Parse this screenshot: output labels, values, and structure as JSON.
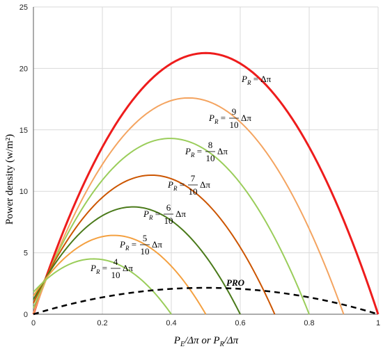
{
  "chart_data": {
    "type": "line",
    "xlabel": "P_E/Δπ or P_R/Δπ",
    "ylabel": "Power density  (w/m²)",
    "xlim": [
      0,
      1
    ],
    "ylim": [
      0,
      25
    ],
    "x_ticks": [
      "0",
      "0.2",
      "0.4",
      "0.6",
      "0.8",
      "1"
    ],
    "y_ticks": [
      "0",
      "5",
      "10",
      "15",
      "20",
      "25"
    ],
    "grid": true,
    "series": [
      {
        "name": "P_R = Δπ",
        "pr": 1.0,
        "x": [
          0,
          0.25,
          0.5,
          0.75,
          1.0
        ],
        "y": [
          0,
          15.9,
          21.25,
          15.9,
          0
        ],
        "color": "#ee1c1c",
        "width": 3
      },
      {
        "name": "P_R = 9/10 Δπ",
        "pr": 0.9,
        "x": [
          0,
          0.2,
          0.45,
          0.7,
          0.9
        ],
        "y": [
          0.05,
          13.1,
          17.6,
          13.1,
          0
        ],
        "color": "#f4a460",
        "width": 2
      },
      {
        "name": "P_R = 8/10 Δπ",
        "pr": 0.8,
        "x": [
          0,
          0.2,
          0.39,
          0.6,
          0.8
        ],
        "y": [
          0.5,
          10.6,
          14.3,
          10.6,
          0
        ],
        "color": "#9acd5a",
        "width": 2
      },
      {
        "name": "P_R = 7/10 Δπ",
        "pr": 0.7,
        "x": [
          0,
          0.17,
          0.33,
          0.52,
          0.7
        ],
        "y": [
          0.9,
          8.3,
          11.3,
          8.3,
          0
        ],
        "color": "#cc5500",
        "width": 2
      },
      {
        "name": "P_R = 6/10 Δπ",
        "pr": 0.6,
        "x": [
          0,
          0.14,
          0.27,
          0.44,
          0.6
        ],
        "y": [
          1.2,
          6.5,
          8.7,
          6.5,
          0
        ],
        "color": "#4a7a1a",
        "width": 2
      },
      {
        "name": "P_R = 5/10 Δπ",
        "pr": 0.5,
        "x": [
          0,
          0.11,
          0.22,
          0.36,
          0.5
        ],
        "y": [
          1.5,
          4.8,
          6.4,
          4.8,
          0
        ],
        "color": "#f4a040",
        "width": 2
      },
      {
        "name": "P_R = 4/10 Δπ",
        "pr": 0.4,
        "x": [
          0,
          0.08,
          0.17,
          0.28,
          0.4
        ],
        "y": [
          1.8,
          3.4,
          4.5,
          3.4,
          0
        ],
        "color": "#9acd5a",
        "width": 2
      },
      {
        "name": "PRO",
        "pr": null,
        "x": [
          0,
          0.25,
          0.5,
          0.75,
          1.0
        ],
        "y": [
          0,
          1.6,
          2.15,
          1.6,
          0
        ],
        "color": "#000000",
        "width": 2.5,
        "dashed": true
      }
    ],
    "labels": {
      "main": {
        "lhs": "P",
        "sub": "R",
        "rhs": "= Δπ"
      },
      "fractions": [
        {
          "num": "9",
          "den": "10",
          "tail": "Δπ"
        },
        {
          "num": "8",
          "den": "10",
          "tail": "Δπ"
        },
        {
          "num": "7",
          "den": "10",
          "tail": "Δπ"
        },
        {
          "num": "6",
          "den": "10",
          "tail": "Δπ"
        },
        {
          "num": "5",
          "den": "10",
          "tail": "Δπ"
        },
        {
          "num": "4",
          "den": "10",
          "tail": "Δπ"
        }
      ],
      "pro": "PRO"
    }
  }
}
